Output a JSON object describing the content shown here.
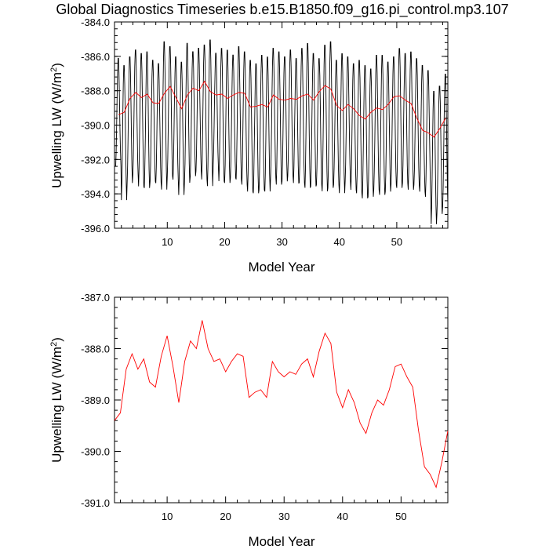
{
  "title": "Global Diagnostics Timeseries b.e15.B1850.f09_g16.pi_control.mp3.107",
  "chart_data": [
    {
      "type": "line",
      "xlabel": "Model Year",
      "ylabel": "Upwelling LW (W/m",
      "ylabel_sup": "2",
      "ylabel_end": ")",
      "xlim": [
        0.8,
        58.9
      ],
      "ylim": [
        -396.0,
        -384.0
      ],
      "x_ticks": [
        10,
        20,
        30,
        40,
        50
      ],
      "y_ticks": [
        -384.0,
        -386.0,
        -388.0,
        -390.0,
        -392.0,
        -394.0,
        -396.0
      ],
      "y_tick_labels": [
        "-384.0",
        "-386.0",
        "-388.0",
        "-390.0",
        "-392.0",
        "-394.0",
        "-396.0"
      ],
      "series": [
        {
          "color": "#000000",
          "kind": "monthly",
          "annual_high": [
            -386.0,
            -386.4,
            -385.9,
            -385.5,
            -385.7,
            -385.6,
            -386.1,
            -386.3,
            -385.0,
            -385.3,
            -385.9,
            -386.2,
            -385.1,
            -385.6,
            -385.4,
            -385.2,
            -384.9,
            -385.7,
            -385.4,
            -385.5,
            -385.8,
            -385.3,
            -385.6,
            -386.1,
            -386.3,
            -385.8,
            -385.9,
            -385.4,
            -385.6,
            -385.9,
            -385.5,
            -386.0,
            -385.4,
            -385.1,
            -385.7,
            -386.0,
            -385.2,
            -385.0,
            -386.1,
            -385.7,
            -385.9,
            -386.3,
            -386.1,
            -386.4,
            -386.6,
            -385.8,
            -385.8,
            -386.2,
            -385.9,
            -385.4,
            -385.7,
            -385.6,
            -386.0,
            -386.4,
            -386.7,
            -387.9,
            -387.6,
            -386.9
          ],
          "annual_low": [
            -392.5,
            -394.5,
            -393.5,
            -393.0,
            -393.7,
            -393.8,
            -393.4,
            -393.5,
            -393.9,
            -393.1,
            -393.3,
            -394.2,
            -393.5,
            -393.1,
            -392.8,
            -393.3,
            -393.7,
            -392.6,
            -393.4,
            -393.5,
            -393.2,
            -393.3,
            -393.6,
            -394.0,
            -394.1,
            -393.9,
            -394.0,
            -393.2,
            -393.6,
            -393.4,
            -393.1,
            -393.5,
            -393.5,
            -393.8,
            -393.7,
            -393.6,
            -394.0,
            -393.8,
            -393.6,
            -394.1,
            -393.4,
            -393.9,
            -394.1,
            -394.4,
            -394.3,
            -393.9,
            -394.2,
            -394.0,
            -393.6,
            -393.8,
            -393.5,
            -393.9,
            -393.6,
            -394.0,
            -394.3,
            -395.9,
            -395.3,
            -394.9
          ]
        },
        {
          "color": "#ff0000",
          "kind": "annual",
          "x": [
            1.5,
            2.5,
            3.5,
            4.5,
            5.5,
            6.5,
            7.5,
            8.5,
            9.5,
            10.5,
            11.5,
            12.5,
            13.5,
            14.5,
            15.5,
            16.5,
            17.5,
            18.5,
            19.5,
            20.5,
            21.5,
            22.5,
            23.5,
            24.5,
            25.5,
            26.5,
            27.5,
            28.5,
            29.5,
            30.5,
            31.5,
            32.5,
            33.5,
            34.5,
            35.5,
            36.5,
            37.5,
            38.5,
            39.5,
            40.5,
            41.5,
            42.5,
            43.5,
            44.5,
            45.5,
            46.5,
            47.5,
            48.5,
            49.5,
            50.5,
            51.5,
            52.5,
            53.5,
            54.5,
            55.5,
            56.5,
            57.5,
            58.5
          ],
          "values": [
            -389.4,
            -389.25,
            -388.45,
            -388.1,
            -388.4,
            -388.2,
            -388.7,
            -388.75,
            -388.15,
            -387.75,
            -388.4,
            -389.05,
            -388.25,
            -387.85,
            -388.0,
            -387.45,
            -388.05,
            -388.25,
            -388.2,
            -388.45,
            -388.25,
            -388.1,
            -388.15,
            -388.95,
            -388.9,
            -388.8,
            -388.95,
            -388.25,
            -388.5,
            -388.55,
            -388.45,
            -388.5,
            -388.3,
            -388.2,
            -388.55,
            -388.05,
            -387.7,
            -387.9,
            -388.85,
            -389.15,
            -388.8,
            -389.05,
            -389.45,
            -389.65,
            -389.25,
            -389.0,
            -389.1,
            -388.8,
            -388.35,
            -388.3,
            -388.55,
            -388.75,
            -389.6,
            -390.3,
            -390.45,
            -390.7,
            -390.2,
            -389.6
          ]
        }
      ]
    },
    {
      "type": "line",
      "xlabel": "Model Year",
      "ylabel": "Upwelling LW (W/m",
      "ylabel_sup": "2",
      "ylabel_end": ")",
      "xlim": [
        1.0,
        58.0
      ],
      "ylim": [
        -391.0,
        -387.0
      ],
      "x_ticks": [
        10,
        20,
        30,
        40,
        50
      ],
      "y_ticks": [
        -387.0,
        -388.0,
        -389.0,
        -390.0,
        -391.0
      ],
      "y_tick_labels": [
        "-387.0",
        "-388.0",
        "-389.0",
        "-390.0",
        "-391.0"
      ],
      "series": [
        {
          "color": "#ff0000",
          "x": [
            1,
            2,
            3,
            4,
            5,
            6,
            7,
            8,
            9,
            10,
            11,
            12,
            13,
            14,
            15,
            16,
            17,
            18,
            19,
            20,
            21,
            22,
            23,
            24,
            25,
            26,
            27,
            28,
            29,
            30,
            31,
            32,
            33,
            34,
            35,
            36,
            37,
            38,
            39,
            40,
            41,
            42,
            43,
            44,
            45,
            46,
            47,
            48,
            49,
            50,
            51,
            52,
            53,
            54,
            55,
            56,
            57,
            58
          ],
          "values": [
            -389.4,
            -389.25,
            -388.4,
            -388.1,
            -388.4,
            -388.2,
            -388.65,
            -388.75,
            -388.15,
            -387.75,
            -388.35,
            -389.05,
            -388.25,
            -387.85,
            -388.0,
            -387.45,
            -388.0,
            -388.25,
            -388.2,
            -388.45,
            -388.25,
            -388.1,
            -388.15,
            -388.95,
            -388.85,
            -388.8,
            -388.95,
            -388.25,
            -388.45,
            -388.55,
            -388.45,
            -388.5,
            -388.3,
            -388.2,
            -388.55,
            -388.05,
            -387.7,
            -387.9,
            -388.85,
            -389.15,
            -388.8,
            -389.05,
            -389.45,
            -389.65,
            -389.25,
            -389.0,
            -389.1,
            -388.8,
            -388.35,
            -388.3,
            -388.55,
            -388.75,
            -389.6,
            -390.3,
            -390.45,
            -390.7,
            -390.2,
            -389.6
          ]
        }
      ]
    }
  ]
}
